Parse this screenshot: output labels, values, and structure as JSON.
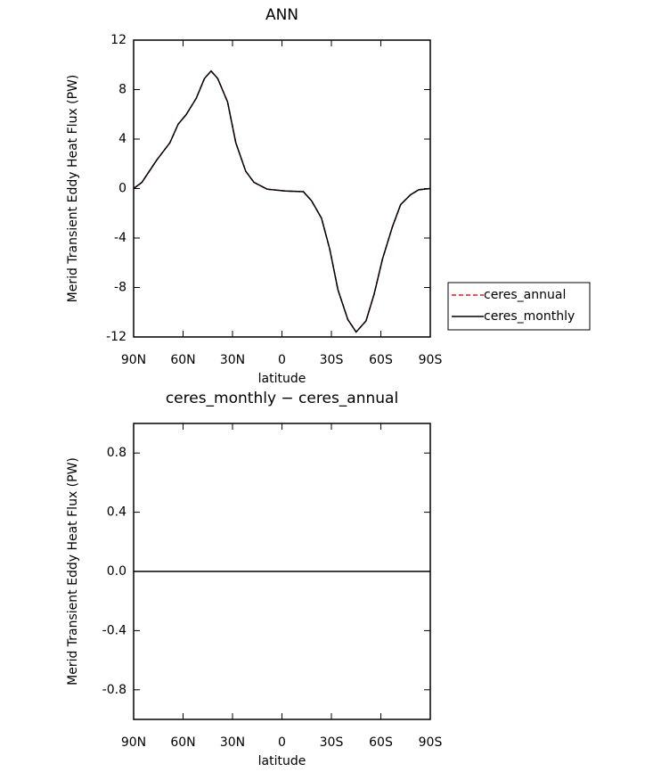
{
  "chart_data": [
    {
      "type": "line",
      "title": "ANN",
      "x_label": "latitude",
      "y_label": "Merid Transient Eddy Heat Flux (PW)",
      "x": [
        90,
        85,
        76,
        68,
        63,
        58,
        52,
        47,
        43,
        39,
        33,
        28,
        22,
        17,
        9,
        -2,
        -13,
        -18,
        -24,
        -29,
        -34,
        -40,
        -45,
        -51,
        -56,
        -61,
        -67,
        -72,
        -78,
        -83,
        -90
      ],
      "series": [
        {
          "name": "ceres_annual",
          "color": "#e8161f",
          "dash": true,
          "values": [
            0,
            0.5,
            2.3,
            3.7,
            5.2,
            6.0,
            7.3,
            8.9,
            9.5,
            8.9,
            7.0,
            3.7,
            1.4,
            0.5,
            -0.05,
            -0.2,
            -0.25,
            -1.0,
            -2.4,
            -4.9,
            -8.2,
            -10.6,
            -11.6,
            -10.7,
            -8.5,
            -5.7,
            -3.1,
            -1.3,
            -0.5,
            -0.1,
            0
          ]
        },
        {
          "name": "ceres_monthly",
          "color": "#000000",
          "dash": false,
          "values": [
            0,
            0.5,
            2.3,
            3.7,
            5.2,
            6.0,
            7.3,
            8.9,
            9.5,
            8.9,
            7.0,
            3.7,
            1.4,
            0.5,
            -0.05,
            -0.2,
            -0.25,
            -1.0,
            -2.4,
            -4.9,
            -8.2,
            -10.6,
            -11.6,
            -10.7,
            -8.5,
            -5.7,
            -3.1,
            -1.3,
            -0.5,
            -0.1,
            0
          ]
        }
      ],
      "xlim": [
        90,
        -90
      ],
      "xticks": [
        {
          "value": 90,
          "label": "90N"
        },
        {
          "value": 60,
          "label": "60N"
        },
        {
          "value": 30,
          "label": "30N"
        },
        0,
        {
          "value": -30,
          "label": "30S"
        },
        {
          "value": -60,
          "label": "60S"
        },
        {
          "value": -90,
          "label": "90S"
        }
      ],
      "ylim": [
        -12,
        12
      ],
      "yticks": [
        -12,
        -8,
        -4,
        0,
        4,
        8,
        12
      ],
      "legend": "right"
    },
    {
      "type": "line",
      "title": "ceres_monthly − ceres_annual",
      "x_label": "latitude",
      "y_label": "Merid Transient Eddy Heat Flux (PW)",
      "x": [
        90,
        -90
      ],
      "series": [
        {
          "color": "#000000",
          "dash": false,
          "values": [
            0,
            0
          ]
        }
      ],
      "xlim": [
        90,
        -90
      ],
      "xticks": [
        {
          "value": 90,
          "label": "90N"
        },
        {
          "value": 60,
          "label": "60N"
        },
        {
          "value": 30,
          "label": "30N"
        },
        0,
        {
          "value": -30,
          "label": "30S"
        },
        {
          "value": -60,
          "label": "60S"
        },
        {
          "value": -90,
          "label": "90S"
        }
      ],
      "ylim": [
        -1,
        1
      ],
      "yticks": [
        -0.8,
        -0.4,
        {
          "value": 0,
          "label": "0.0"
        },
        0.4,
        0.8
      ]
    }
  ]
}
